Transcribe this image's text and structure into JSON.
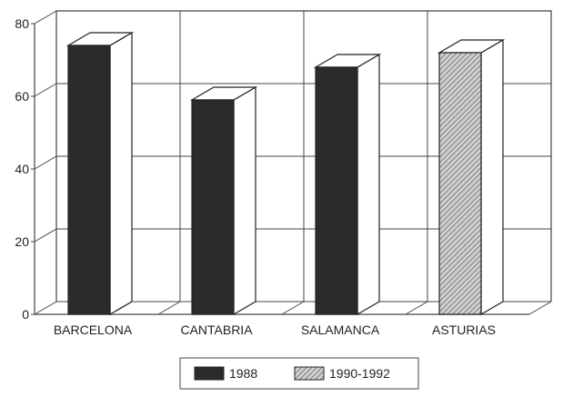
{
  "chart_data": {
    "type": "bar",
    "categories": [
      "BARCELONA",
      "CANTABRIA",
      "SALAMANCA",
      "ASTURIAS"
    ],
    "series": [
      {
        "name": "1988",
        "values": [
          74,
          59,
          68,
          null
        ]
      },
      {
        "name": "1990-1992",
        "values": [
          null,
          null,
          null,
          72
        ]
      }
    ],
    "ylim": [
      0,
      80
    ],
    "yticks": [
      0,
      20,
      40,
      60,
      80
    ],
    "xlabel": "",
    "ylabel": "",
    "title": "",
    "grid": true,
    "legend_position": "bottom-center",
    "colors": {
      "series_1988": "#2b2b2b",
      "series_1990_1992": "#b8b8b8",
      "grid": "#444444",
      "background": "#ffffff"
    }
  }
}
